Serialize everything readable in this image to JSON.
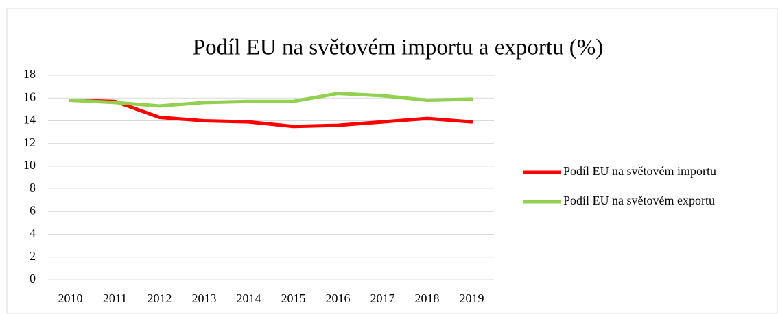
{
  "chart_data": {
    "type": "line",
    "title": "Podíl EU na světovém importu a exportu (%)",
    "categories": [
      "2010",
      "2011",
      "2012",
      "2013",
      "2014",
      "2015",
      "2016",
      "2017",
      "2018",
      "2019"
    ],
    "series": [
      {
        "name": "Podíl EU na světovém importu",
        "color": "#ff0000",
        "values": [
          15.8,
          15.7,
          14.3,
          14.0,
          13.9,
          13.5,
          13.6,
          13.9,
          14.2,
          13.9
        ]
      },
      {
        "name": "Podíl EU na světovém exportu",
        "color": "#92d050",
        "values": [
          15.8,
          15.6,
          15.3,
          15.6,
          15.7,
          15.7,
          16.4,
          16.2,
          15.8,
          15.9
        ]
      }
    ],
    "ylim": [
      0,
      18
    ],
    "yticks": [
      0,
      2,
      4,
      6,
      8,
      10,
      12,
      14,
      16,
      18
    ],
    "grid": true,
    "legend": "right"
  }
}
